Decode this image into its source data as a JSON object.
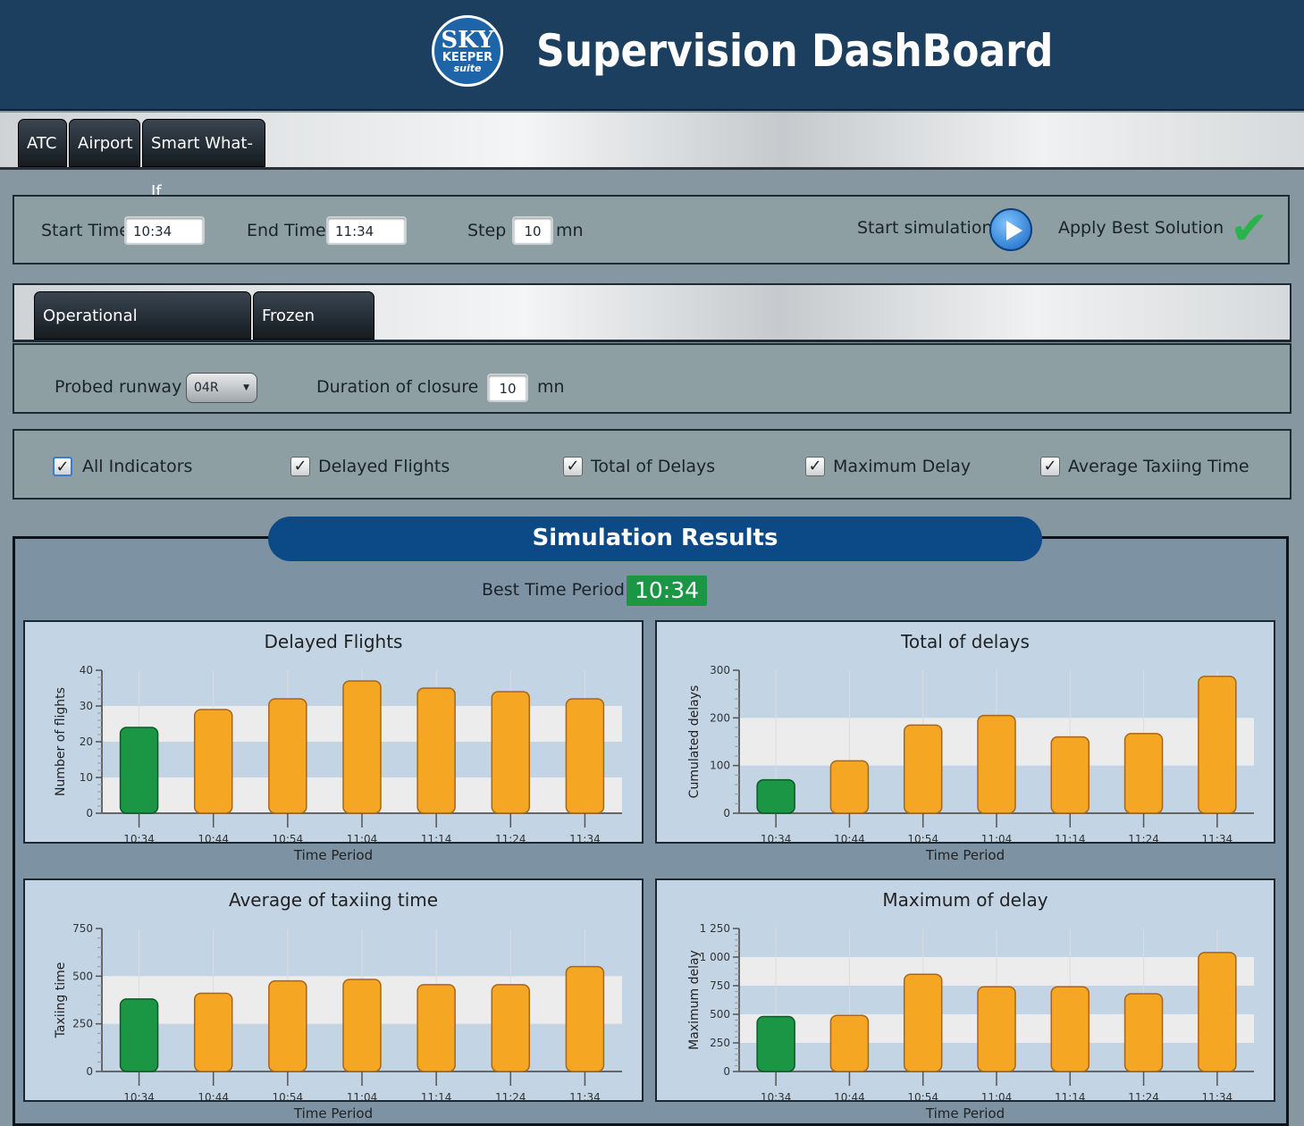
{
  "header": {
    "logo": {
      "line1": "SKY",
      "line2": "KEEPER",
      "line3": "suite"
    },
    "title": "Supervision DashBoard"
  },
  "main_tabs": [
    {
      "label": "ATC"
    },
    {
      "label": "Airport"
    },
    {
      "label": "Smart What-If"
    }
  ],
  "sim_controls": {
    "start_label": "Start Time",
    "start_value": "10:34",
    "end_label": "End Time",
    "end_value": "11:34",
    "step_label": "Step",
    "step_value": "10",
    "step_unit": "mn",
    "start_sim_label": "Start simulation",
    "apply_label": "Apply Best Solution"
  },
  "sub_tabs": [
    {
      "label": "Operational Configuration"
    },
    {
      "label": "Frozen Period"
    }
  ],
  "config": {
    "runway_label": "Probed runway",
    "runway_value": "04R",
    "closure_label": "Duration of closure",
    "closure_value": "10",
    "closure_unit": "mn"
  },
  "indicators": [
    {
      "label": "All Indicators",
      "checked": true
    },
    {
      "label": "Delayed Flights",
      "checked": true
    },
    {
      "label": "Total of Delays",
      "checked": true
    },
    {
      "label": "Maximum Delay",
      "checked": true
    },
    {
      "label": "Average Taxiing Time",
      "checked": true
    }
  ],
  "results": {
    "title": "Simulation Results",
    "best_label": "Best Time Period",
    "best_value": "10:34"
  },
  "colors": {
    "best": "#1a9645",
    "other": "#f5a623",
    "header": "#1d3f5f",
    "results_title": "#0b4a86"
  },
  "chart_data": [
    {
      "type": "bar",
      "title": "Delayed Flights",
      "xlabel": "Time Period",
      "ylabel": "Number of flights",
      "categories": [
        "10:34",
        "10:44",
        "10:54",
        "11:04",
        "11:14",
        "11:24",
        "11:34"
      ],
      "values": [
        24,
        29,
        32,
        37,
        35,
        34,
        32
      ],
      "ylim": [
        0,
        40
      ],
      "yticks": [
        "0",
        "10",
        "20",
        "30",
        "40"
      ],
      "highlight": "10:34"
    },
    {
      "type": "bar",
      "title": "Total of delays",
      "xlabel": "Time Period",
      "ylabel": "Cumulated delays",
      "categories": [
        "10:34",
        "10:44",
        "10:54",
        "11:04",
        "11:14",
        "11:24",
        "11:34"
      ],
      "values": [
        70,
        110,
        185,
        205,
        160,
        167,
        287
      ],
      "ylim": [
        0,
        300
      ],
      "yticks": [
        "0",
        "100",
        "200",
        "300"
      ],
      "highlight": "10:34"
    },
    {
      "type": "bar",
      "title": "Average of taxiing time",
      "xlabel": "Time Period",
      "ylabel": "Taxiing time",
      "categories": [
        "10:34",
        "10:44",
        "10:54",
        "11:04",
        "11:14",
        "11:24",
        "11:34"
      ],
      "values": [
        380,
        410,
        475,
        483,
        455,
        455,
        550
      ],
      "ylim": [
        0,
        750
      ],
      "yticks": [
        "0",
        "250",
        "500",
        "750"
      ],
      "highlight": "10:34"
    },
    {
      "type": "bar",
      "title": "Maximum of delay",
      "xlabel": "Time Period",
      "ylabel": "Maximum delay",
      "categories": [
        "10:34",
        "10:44",
        "10:54",
        "11:04",
        "11:14",
        "11:24",
        "11:34"
      ],
      "values": [
        480,
        490,
        850,
        740,
        740,
        680,
        1040
      ],
      "ylim": [
        0,
        1250
      ],
      "yticks": [
        "0",
        "250",
        "500",
        "750",
        "1 000",
        "1 250"
      ],
      "highlight": "10:34"
    }
  ]
}
